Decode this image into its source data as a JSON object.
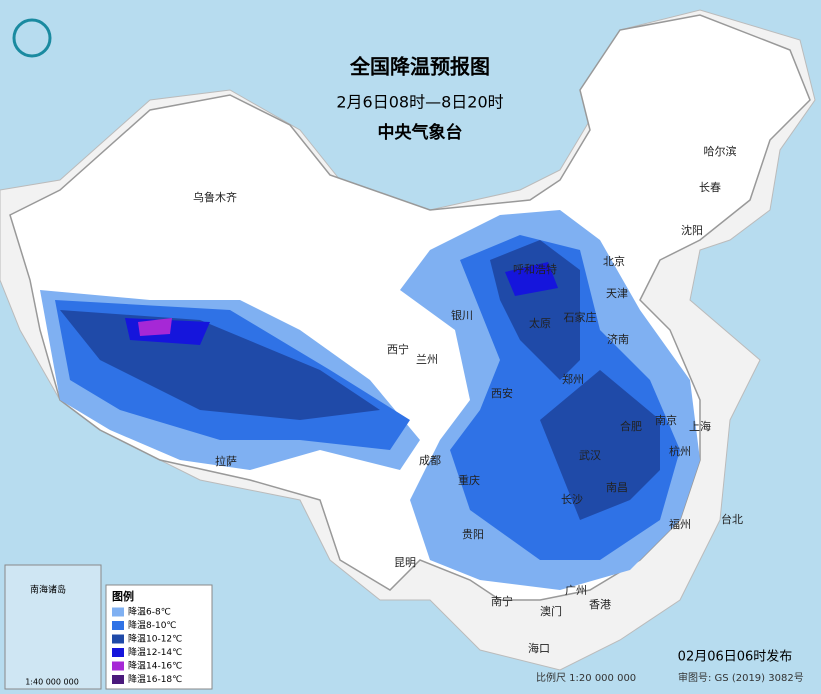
{
  "header": {
    "title": "全国降温预报图",
    "period": "2月6日08时—8日20时",
    "agency": "中央气象台"
  },
  "legend": {
    "title": "图例",
    "items": [
      {
        "label": "降温6-8℃",
        "color": "#7fb0f2"
      },
      {
        "label": "降温8-10℃",
        "color": "#2f72e6"
      },
      {
        "label": "降温10-12℃",
        "color": "#1f4aa8"
      },
      {
        "label": "降温12-14℃",
        "color": "#1515dc"
      },
      {
        "label": "降温14-16℃",
        "color": "#a628d6"
      },
      {
        "label": "降温16-18℃",
        "color": "#4a1a7c"
      }
    ]
  },
  "cities": [
    "乌鲁木齐",
    "哈尔滨",
    "长春",
    "沈阳",
    "北京",
    "天津",
    "呼和浩特",
    "石家庄",
    "太原",
    "银川",
    "西宁",
    "兰州",
    "济南",
    "郑州",
    "西安",
    "合肥",
    "南京",
    "上海",
    "杭州",
    "武汉",
    "成都",
    "重庆",
    "长沙",
    "南昌",
    "福州",
    "台北",
    "贵阳",
    "昆明",
    "拉萨",
    "南宁",
    "广州",
    "澳门",
    "香港",
    "海口"
  ],
  "footer": {
    "issued": "02月06日06时发布",
    "scale": "比例尺 1:20 000 000",
    "approval": "审图号: GS (2019) 3082号"
  },
  "inset": {
    "label": "南海诸岛",
    "scale": "1:40 000 000"
  }
}
